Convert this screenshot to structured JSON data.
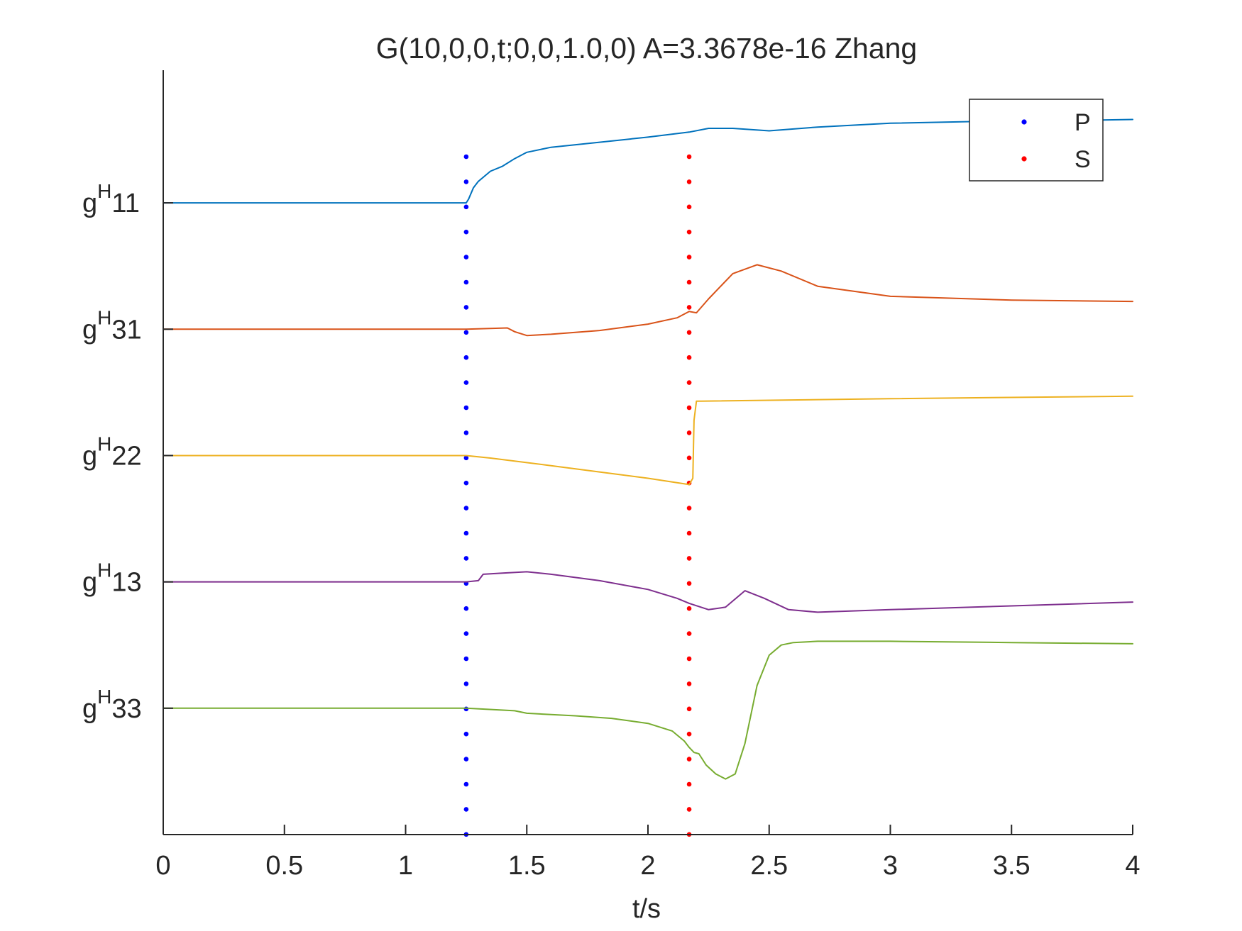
{
  "chart_data": {
    "type": "line",
    "title": "G(10,0,0,t;0,0,1.0,0) A=3.3678e-16 Zhang",
    "xlabel": "t/s",
    "xlim": [
      0,
      4
    ],
    "xticks": [
      "0",
      "0.5",
      "1",
      "1.5",
      "2",
      "2.5",
      "3",
      "3.5",
      "4"
    ],
    "xtick_values": [
      0,
      0.5,
      1,
      1.5,
      2,
      2.5,
      3,
      3.5,
      4
    ],
    "ylim": [
      -1,
      5.05
    ],
    "grid": false,
    "legend_position": "top-right",
    "legend": [
      {
        "label": "P",
        "color": "#0000ff",
        "x": 1.25
      },
      {
        "label": "S",
        "color": "#ff0000",
        "x": 2.17
      }
    ],
    "series": [
      {
        "key": "gH11",
        "label_base": "g",
        "label_sup": "H",
        "label_sub": "11",
        "baseline": 4,
        "color": "#0072bd",
        "points": [
          [
            0,
            0
          ],
          [
            1.25,
            0
          ],
          [
            1.26,
            0.03
          ],
          [
            1.28,
            0.12
          ],
          [
            1.3,
            0.17
          ],
          [
            1.35,
            0.25
          ],
          [
            1.4,
            0.29
          ],
          [
            1.45,
            0.35
          ],
          [
            1.5,
            0.4
          ],
          [
            1.6,
            0.44
          ],
          [
            1.8,
            0.48
          ],
          [
            2,
            0.52
          ],
          [
            2.17,
            0.56
          ],
          [
            2.25,
            0.59
          ],
          [
            2.35,
            0.59
          ],
          [
            2.5,
            0.57
          ],
          [
            2.7,
            0.6
          ],
          [
            3,
            0.63
          ],
          [
            3.5,
            0.65
          ],
          [
            3.7,
            0.65
          ],
          [
            4,
            0.66
          ]
        ]
      },
      {
        "key": "gH31",
        "label_base": "g",
        "label_sup": "H",
        "label_sub": "31",
        "baseline": 3,
        "color": "#d95319",
        "points": [
          [
            0,
            0
          ],
          [
            1.25,
            0
          ],
          [
            1.42,
            0.01
          ],
          [
            1.45,
            -0.02
          ],
          [
            1.5,
            -0.05
          ],
          [
            1.6,
            -0.04
          ],
          [
            1.8,
            -0.01
          ],
          [
            2,
            0.04
          ],
          [
            2.12,
            0.09
          ],
          [
            2.17,
            0.14
          ],
          [
            2.2,
            0.13
          ],
          [
            2.25,
            0.24
          ],
          [
            2.35,
            0.44
          ],
          [
            2.45,
            0.51
          ],
          [
            2.55,
            0.46
          ],
          [
            2.7,
            0.34
          ],
          [
            3,
            0.26
          ],
          [
            3.5,
            0.23
          ],
          [
            4,
            0.22
          ]
        ]
      },
      {
        "key": "gH22",
        "label_base": "g",
        "label_sup": "H",
        "label_sub": "22",
        "baseline": 2,
        "color": "#edb120",
        "points": [
          [
            0,
            0
          ],
          [
            1.25,
            0
          ],
          [
            1.35,
            -0.02
          ],
          [
            1.6,
            -0.08
          ],
          [
            1.8,
            -0.13
          ],
          [
            2,
            -0.18
          ],
          [
            2.17,
            -0.23
          ],
          [
            2.185,
            -0.18
          ],
          [
            2.19,
            0.28
          ],
          [
            2.2,
            0.43
          ],
          [
            2.22,
            0.43
          ],
          [
            3,
            0.45
          ],
          [
            4,
            0.47
          ]
        ]
      },
      {
        "key": "gH13",
        "label_base": "g",
        "label_sup": "H",
        "label_sub": "13",
        "baseline": 1,
        "color": "#7e2f8e",
        "points": [
          [
            0,
            0
          ],
          [
            1.25,
            0
          ],
          [
            1.3,
            0.01
          ],
          [
            1.32,
            0.06
          ],
          [
            1.4,
            0.07
          ],
          [
            1.5,
            0.08
          ],
          [
            1.6,
            0.06
          ],
          [
            1.8,
            0.01
          ],
          [
            2,
            -0.06
          ],
          [
            2.12,
            -0.13
          ],
          [
            2.17,
            -0.17
          ],
          [
            2.25,
            -0.22
          ],
          [
            2.32,
            -0.2
          ],
          [
            2.4,
            -0.07
          ],
          [
            2.48,
            -0.13
          ],
          [
            2.58,
            -0.22
          ],
          [
            2.7,
            -0.24
          ],
          [
            3,
            -0.22
          ],
          [
            3.5,
            -0.19
          ],
          [
            4,
            -0.16
          ]
        ]
      },
      {
        "key": "gH33",
        "label_base": "g",
        "label_sup": "H",
        "label_sub": "33",
        "baseline": 0,
        "color": "#77ac30",
        "points": [
          [
            0,
            0
          ],
          [
            1.25,
            0
          ],
          [
            1.45,
            -0.02
          ],
          [
            1.5,
            -0.04
          ],
          [
            1.7,
            -0.06
          ],
          [
            1.85,
            -0.08
          ],
          [
            2,
            -0.12
          ],
          [
            2.1,
            -0.18
          ],
          [
            2.15,
            -0.26
          ],
          [
            2.17,
            -0.31
          ],
          [
            2.19,
            -0.35
          ],
          [
            2.21,
            -0.36
          ],
          [
            2.24,
            -0.45
          ],
          [
            2.28,
            -0.52
          ],
          [
            2.32,
            -0.56
          ],
          [
            2.36,
            -0.52
          ],
          [
            2.4,
            -0.28
          ],
          [
            2.45,
            0.18
          ],
          [
            2.5,
            0.42
          ],
          [
            2.55,
            0.5
          ],
          [
            2.6,
            0.52
          ],
          [
            2.7,
            0.53
          ],
          [
            3,
            0.53
          ],
          [
            3.5,
            0.52
          ],
          [
            4,
            0.51
          ]
        ]
      }
    ]
  }
}
